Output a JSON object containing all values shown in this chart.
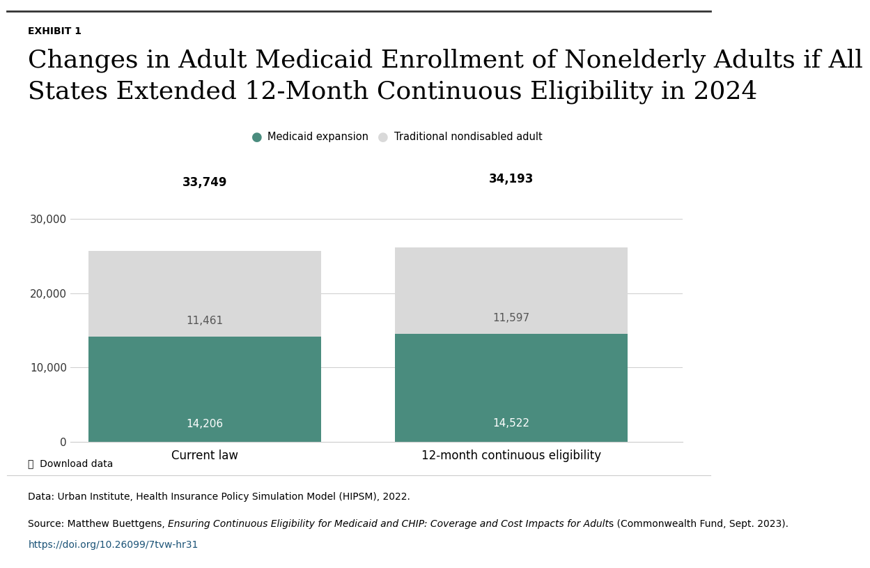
{
  "exhibit_label": "EXHIBIT 1",
  "title_line1": "Changes in Adult Medicaid Enrollment of Nonelderly Adults if All",
  "title_line2": "States Extended 12-Month Continuous Eligibility in 2024",
  "legend": [
    {
      "label": "Medicaid expansion",
      "color": "#4a8c7e"
    },
    {
      "label": "Traditional nondisabled adult",
      "color": "#d9d9d9"
    }
  ],
  "categories": [
    "Current law",
    "12-month continuous eligibility"
  ],
  "medicaid_expansion": [
    14206,
    14522
  ],
  "traditional_nondisabled": [
    11461,
    11597
  ],
  "totals": [
    33749,
    34193
  ],
  "bar_color_expansion": "#4a8c7e",
  "bar_color_traditional": "#d9d9d9",
  "ylim": [
    0,
    38000
  ],
  "yticks": [
    0,
    10000,
    20000,
    30000
  ],
  "ytick_labels": [
    "0",
    "10,000",
    "20,000",
    "30,000"
  ],
  "background_color": "#ffffff",
  "data_note": "Data: Urban Institute, Health Insurance Policy Simulation Model (HIPSM), 2022.",
  "source_prefix": "Source: Matthew Buettgens, ",
  "source_italic": "Ensuring Continuous Eligibility for Medicaid and CHIP: Coverage and Cost Impacts for Adult",
  "source_suffix": "s (Commonwealth Fund, Sept. 2023).",
  "source_url": "https://doi.org/10.26099/7tvw-hr31",
  "download_label": "⤓  Download data"
}
